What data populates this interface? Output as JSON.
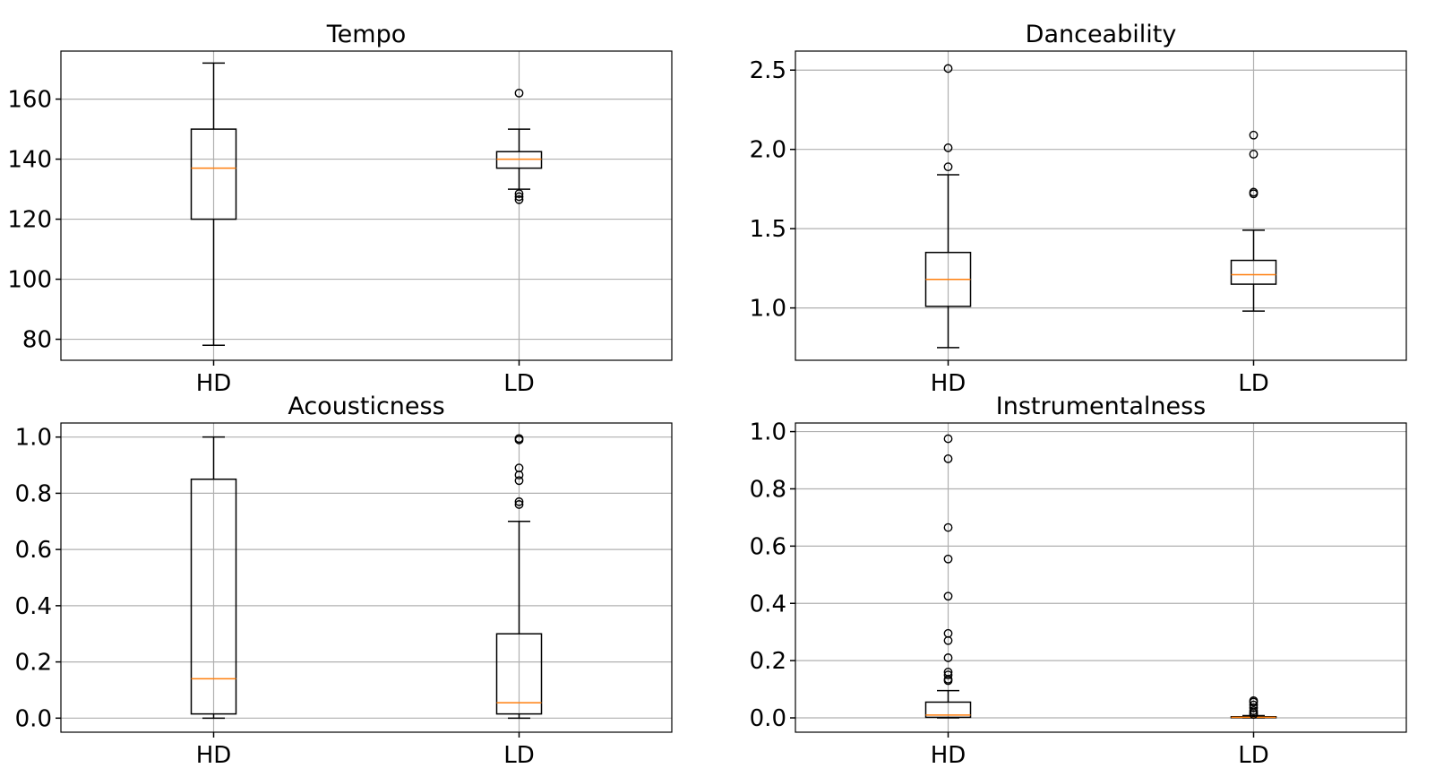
{
  "chart_data": [
    {
      "type": "box",
      "title": "Tempo",
      "categories": [
        "HD",
        "LD"
      ],
      "ylim": [
        73,
        176
      ],
      "yticks": [
        80,
        100,
        120,
        140,
        160
      ],
      "tick_decimals": 0,
      "grid": true,
      "boxes": [
        {
          "name": "HD",
          "whisker_low": 78,
          "q1": 120,
          "median": 137,
          "q3": 150,
          "whisker_high": 172,
          "fliers": []
        },
        {
          "name": "LD",
          "whisker_low": 130,
          "q1": 137,
          "median": 140,
          "q3": 142.5,
          "whisker_high": 150,
          "fliers": [
            162,
            128.5,
            127.5,
            126.5
          ]
        }
      ]
    },
    {
      "type": "box",
      "title": "Danceability",
      "categories": [
        "HD",
        "LD"
      ],
      "ylim": [
        0.67,
        2.62
      ],
      "yticks": [
        1.0,
        1.5,
        2.0,
        2.5
      ],
      "tick_decimals": 1,
      "grid": true,
      "boxes": [
        {
          "name": "HD",
          "whisker_low": 0.75,
          "q1": 1.01,
          "median": 1.18,
          "q3": 1.35,
          "whisker_high": 1.84,
          "fliers": [
            2.51,
            2.01,
            1.89
          ]
        },
        {
          "name": "LD",
          "whisker_low": 0.98,
          "q1": 1.15,
          "median": 1.21,
          "q3": 1.3,
          "whisker_high": 1.49,
          "fliers": [
            2.09,
            1.97,
            1.73,
            1.72
          ]
        }
      ]
    },
    {
      "type": "box",
      "title": "Acousticness",
      "categories": [
        "HD",
        "LD"
      ],
      "ylim": [
        -0.05,
        1.05
      ],
      "yticks": [
        0.0,
        0.2,
        0.4,
        0.6,
        0.8,
        1.0
      ],
      "tick_decimals": 1,
      "grid": true,
      "boxes": [
        {
          "name": "HD",
          "whisker_low": 0.0,
          "q1": 0.015,
          "median": 0.14,
          "q3": 0.85,
          "whisker_high": 1.0,
          "fliers": []
        },
        {
          "name": "LD",
          "whisker_low": 0.0,
          "q1": 0.015,
          "median": 0.055,
          "q3": 0.3,
          "whisker_high": 0.7,
          "fliers": [
            0.995,
            0.99,
            0.89,
            0.865,
            0.845,
            0.77,
            0.76
          ]
        }
      ]
    },
    {
      "type": "box",
      "title": "Instrumentalness",
      "categories": [
        "HD",
        "LD"
      ],
      "ylim": [
        -0.05,
        1.03
      ],
      "yticks": [
        0.0,
        0.2,
        0.4,
        0.6,
        0.8,
        1.0
      ],
      "tick_decimals": 1,
      "grid": true,
      "boxes": [
        {
          "name": "HD",
          "whisker_low": 0.0,
          "q1": 0.002,
          "median": 0.01,
          "q3": 0.055,
          "whisker_high": 0.095,
          "fliers": [
            0.975,
            0.905,
            0.665,
            0.555,
            0.425,
            0.295,
            0.27,
            0.21,
            0.16,
            0.15,
            0.135,
            0.13
          ]
        },
        {
          "name": "LD",
          "whisker_low": 0.0,
          "q1": 0.0005,
          "median": 0.002,
          "q3": 0.004,
          "whisker_high": 0.008,
          "fliers": [
            0.06,
            0.055,
            0.045,
            0.035,
            0.025,
            0.018,
            0.012
          ]
        }
      ]
    }
  ]
}
